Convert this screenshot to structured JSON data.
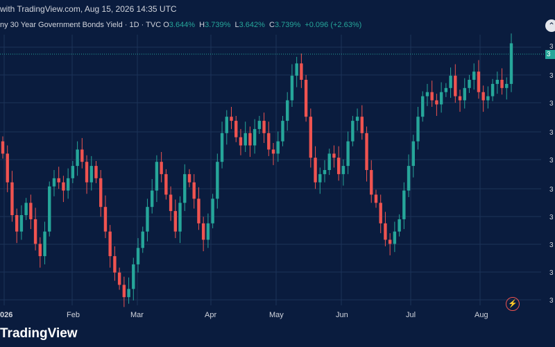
{
  "header": {
    "caption": "with TradingView.com, Aug 15, 2026 14:35 UTC"
  },
  "legend": {
    "title": "ny 30 Year Government Bonds Yield · 1D · TVC",
    "o_label": "O",
    "o_value": "3.644%",
    "h_label": "H",
    "h_value": "3.739%",
    "l_label": "L",
    "l_value": "3.642%",
    "c_label": "C",
    "c_value": "3.739%",
    "change": "+0.096 (+2.63%)"
  },
  "axis": {
    "x_labels": [
      "026",
      "Feb",
      "Mar",
      "Apr",
      "May",
      "Jun",
      "Jul",
      "Aug"
    ],
    "y_labels": [
      "3",
      "3",
      "3",
      "3",
      "3",
      "3",
      "3",
      "3",
      "3",
      "3"
    ],
    "last_price_label": "3"
  },
  "footer": {
    "brand": "TradingView"
  },
  "icons": {
    "collapse": "chevron-up-icon",
    "lightning": "lightning-icon"
  },
  "colors": {
    "background": "#0a1c3e",
    "up": "#26a69a",
    "down": "#ef5350",
    "grid": "#1c3358",
    "last_price_line": "#26a69a"
  },
  "chart_data": {
    "type": "candlestick",
    "title": "30 Year Government Bonds Yield",
    "interval": "1D",
    "source": "TVC",
    "x_start": "2026-01-01",
    "y_unit": "%",
    "y_range": [
      3.1,
      3.76
    ],
    "grid": true,
    "last_close": 3.739,
    "series": [
      {
        "name": "yield",
        "x_day": 1,
        "close_path": [
          3.47,
          3.4,
          3.32,
          3.28,
          3.32,
          3.35,
          3.31,
          3.25,
          3.22,
          3.28,
          3.39,
          3.41,
          3.4,
          3.38,
          3.41,
          3.44,
          3.48,
          3.45,
          3.4,
          3.44,
          3.41,
          3.34,
          3.28,
          3.22,
          3.18,
          3.15,
          3.12,
          3.14,
          3.2,
          3.24,
          3.28,
          3.34,
          3.38,
          3.45,
          3.42,
          3.37,
          3.33,
          3.28,
          3.35,
          3.42,
          3.4,
          3.36,
          3.3,
          3.26,
          3.3,
          3.36,
          3.45,
          3.52,
          3.56,
          3.55,
          3.51,
          3.49,
          3.52,
          3.49,
          3.53,
          3.55,
          3.52,
          3.48,
          3.47,
          3.5,
          3.55,
          3.6,
          3.66,
          3.69,
          3.65,
          3.56,
          3.46,
          3.4,
          3.42,
          3.43,
          3.47,
          3.46,
          3.42,
          3.44,
          3.5,
          3.55,
          3.56,
          3.52,
          3.43,
          3.37,
          3.35,
          3.3,
          3.26,
          3.25,
          3.28,
          3.31,
          3.38,
          3.44,
          3.5,
          3.56,
          3.61,
          3.62,
          3.6,
          3.59,
          3.62,
          3.63,
          3.66,
          3.61,
          3.6,
          3.63,
          3.65,
          3.67,
          3.62,
          3.6,
          3.61,
          3.64,
          3.65,
          3.63,
          3.64,
          3.739
        ]
      }
    ]
  }
}
